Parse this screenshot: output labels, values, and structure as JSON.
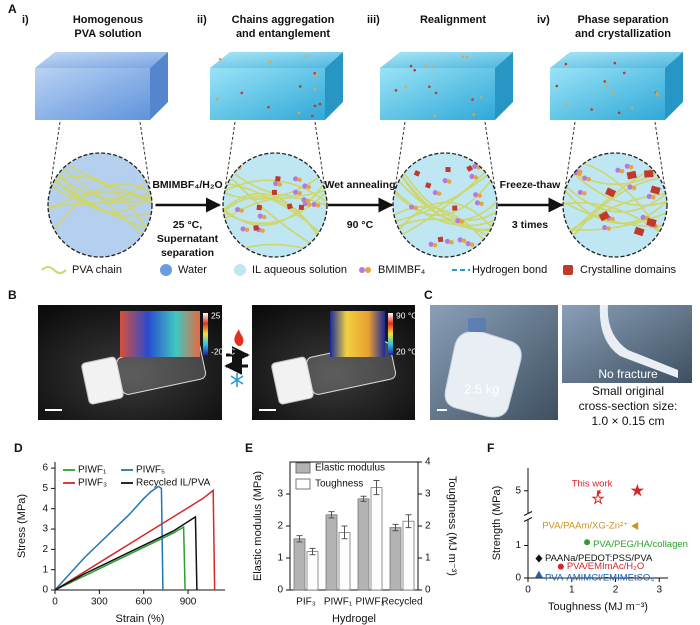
{
  "panel_a": {
    "label": "A",
    "steps": [
      {
        "number": "i)",
        "title": [
          "Homogenous",
          "PVA solution"
        ]
      },
      {
        "number": "ii)",
        "title": [
          "Chains aggregation",
          "and entanglement"
        ]
      },
      {
        "number": "iii)",
        "title": [
          "Realignment"
        ]
      },
      {
        "number": "iv)",
        "title": [
          "Phase separation",
          "and crystallization"
        ]
      }
    ],
    "transitions": [
      {
        "above": [
          "BMIMBF₄/H₂O"
        ],
        "below": [
          "25 °C,",
          "Supernatant",
          "separation"
        ]
      },
      {
        "above": [
          "Wet annealing"
        ],
        "below": [
          "90 °C"
        ]
      },
      {
        "above": [
          "Freeze-thaw"
        ],
        "below": [
          "3 times"
        ]
      }
    ],
    "legend": [
      "PVA chain",
      "Water",
      "IL aqueous solution",
      "BMIMBF₄",
      "Hydrogen bond",
      "Crystalline domains"
    ]
  },
  "panel_b": {
    "label": "B",
    "insets": [
      {
        "max": "25 °C",
        "min": "-20 °C"
      },
      {
        "max": "90 °C",
        "min": "20 °C"
      }
    ]
  },
  "panel_c": {
    "label": "C",
    "weight": "2.5 kg",
    "note": "No fracture",
    "caption": [
      "Small original",
      "cross-section size:",
      "1.0 × 0.15 cm"
    ]
  },
  "chart_data": [
    {
      "panel": "D",
      "type": "line",
      "xlabel": "Strain (%)",
      "ylabel": "Stress (MPa)",
      "xlim": [
        0,
        1150
      ],
      "xticks": [
        0,
        300,
        600,
        900
      ],
      "ylim": [
        0,
        6.3
      ],
      "yticks": [
        0,
        1,
        2,
        3,
        4,
        5,
        6
      ],
      "series": [
        {
          "name": "PIWF₁",
          "color": "#2ca02c",
          "x": [
            0,
            200,
            400,
            600,
            800,
            870,
            880
          ],
          "values": [
            0,
            0.7,
            1.4,
            2.1,
            2.8,
            3.1,
            0
          ]
        },
        {
          "name": "PIWF₅",
          "color": "#1f77b4",
          "x": [
            0,
            100,
            200,
            300,
            400,
            500,
            600,
            650,
            700,
            720,
            730
          ],
          "values": [
            0,
            0.8,
            1.6,
            2.3,
            3.0,
            3.7,
            4.5,
            4.85,
            5.1,
            5.0,
            0
          ]
        },
        {
          "name": "PIWF₃",
          "color": "#d62728",
          "x": [
            0,
            200,
            400,
            600,
            800,
            1000,
            1070,
            1080
          ],
          "values": [
            0,
            0.9,
            1.8,
            2.7,
            3.6,
            4.5,
            4.9,
            0
          ]
        },
        {
          "name": "Recycled IL/PVA",
          "color": "#111111",
          "x": [
            0,
            200,
            400,
            600,
            800,
            950,
            960
          ],
          "values": [
            0,
            0.8,
            1.5,
            2.2,
            2.9,
            3.6,
            0
          ]
        }
      ]
    },
    {
      "panel": "E",
      "type": "bar",
      "xlabel": "Hydrogel",
      "ylabel": "Elastic modulus (MPa)",
      "y2label": "Toughness (MJ m⁻³)",
      "categories": [
        "PIF₃",
        "PIWF₁",
        "PIWF₃",
        "Recycled"
      ],
      "ylim": [
        0,
        4
      ],
      "yticks": [
        0,
        1,
        2,
        3
      ],
      "y2lim": [
        0,
        4
      ],
      "y2ticks": [
        0,
        1,
        2,
        3,
        4
      ],
      "series": [
        {
          "name": "Elastic modulus",
          "color": "#b3b3b3",
          "values": [
            1.6,
            2.35,
            2.85,
            1.95
          ],
          "errors": [
            0.1,
            0.1,
            0.08,
            0.1
          ]
        },
        {
          "name": "Toughness",
          "color": "#ffffff",
          "axis": "y2",
          "values": [
            1.2,
            1.8,
            3.2,
            2.15
          ],
          "errors": [
            0.1,
            0.2,
            0.22,
            0.2
          ]
        }
      ]
    },
    {
      "panel": "F",
      "type": "scatter",
      "xlabel": "Toughness (MJ m⁻³)",
      "ylabel": "Strength (MPa)",
      "xlim": [
        0,
        3.2
      ],
      "xticks": [
        0,
        1,
        2,
        3
      ],
      "ylim": [
        0,
        5.7
      ],
      "yticks": [
        0,
        1,
        5
      ],
      "y_break": [
        1.8,
        4.3
      ],
      "series": [
        {
          "name": "This work",
          "color": "#d62728",
          "marker": "star",
          "x": [
            2.5,
            1.6
          ],
          "values": [
            5.0,
            4.75
          ],
          "fills": [
            "#d62728",
            "none"
          ]
        },
        {
          "name": "PVA/PAAm/XG-Zn²⁺",
          "color": "#c8961e",
          "marker": "triangle-left",
          "x": [
            2.45
          ],
          "values": [
            1.6
          ]
        },
        {
          "name": "PVA/PEG/HA/collagen",
          "color": "#2ca02c",
          "marker": "circle",
          "x": [
            1.35
          ],
          "values": [
            1.1
          ]
        },
        {
          "name": "PAANa/PEDOT:PSS/PVA",
          "color": "#111111",
          "marker": "diamond",
          "x": [
            0.25
          ],
          "values": [
            0.6
          ]
        },
        {
          "name": "PVA/EMImAc/H₂O",
          "color": "#d62728",
          "marker": "circle",
          "x": [
            0.75
          ],
          "values": [
            0.35
          ]
        },
        {
          "name": "PVA-AMIMCl/EMIMEtSO₄",
          "color": "#1f5fb4",
          "marker": "triangle-up",
          "x": [
            0.25
          ],
          "values": [
            0.1
          ]
        }
      ]
    }
  ]
}
